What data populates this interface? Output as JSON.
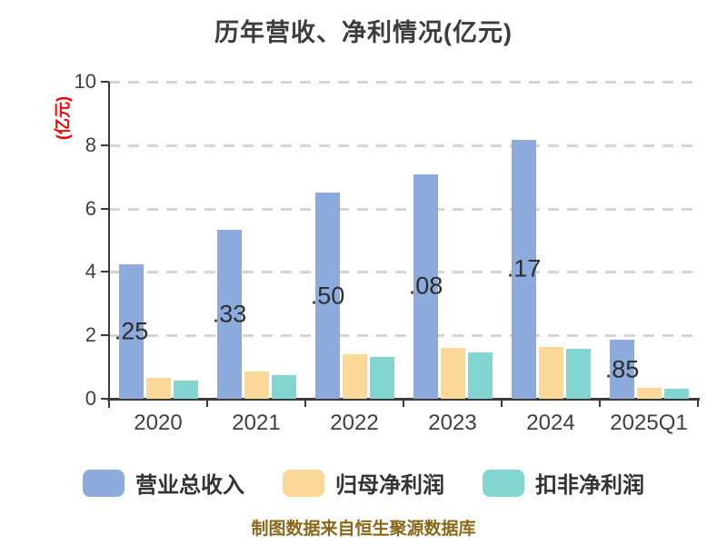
{
  "footer": "制图数据来自恒生聚源数据库",
  "chart_data": {
    "type": "bar",
    "title": "历年营收、净利情况(亿元)",
    "ylabel": "(亿元)",
    "xlabel": "",
    "categories": [
      "2020",
      "2021",
      "2022",
      "2023",
      "2024",
      "2025Q1"
    ],
    "series": [
      {
        "name": "营业总收入",
        "color": "#8caadc",
        "values": [
          4.25,
          5.33,
          6.5,
          7.08,
          8.17,
          1.85
        ],
        "bar_labels": [
          ".25",
          ".33",
          ".50",
          ".08",
          ".17",
          ".85"
        ]
      },
      {
        "name": "归母净利润",
        "color": "#fbd897",
        "values": [
          0.65,
          0.85,
          1.4,
          1.6,
          1.62,
          0.34
        ]
      },
      {
        "name": "扣非净利润",
        "color": "#82d5d1",
        "values": [
          0.57,
          0.74,
          1.31,
          1.45,
          1.59,
          0.31
        ]
      }
    ],
    "ylim": [
      0,
      10
    ],
    "yticks": [
      0,
      2,
      4,
      6,
      8,
      10
    ],
    "grid": "horizontal dashed lines at 2,4,6,8,10",
    "legend_position": "bottom",
    "colors": {
      "title_text": "#3c3c3c",
      "axis_line": "#3a3a3a",
      "tick_text": "#3f3f3f",
      "gridline": "#d5d5d5",
      "y_unit_label": "#ff0000",
      "bar_value_text": "#2d2d2d",
      "footer_text": "#8a681a",
      "background": "#ffffff"
    }
  }
}
